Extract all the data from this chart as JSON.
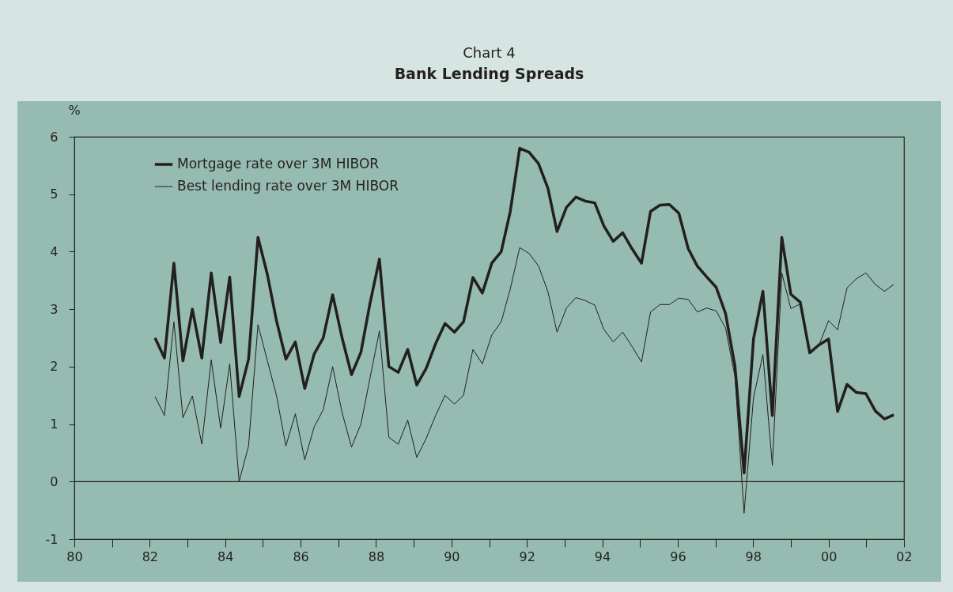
{
  "chart_data": {
    "type": "line",
    "title": "Chart 4",
    "subtitle": "Bank Lending Spreads",
    "ylabel": "%",
    "x": [
      1982.14,
      1982.39,
      1982.64,
      1982.88,
      1983.13,
      1983.38,
      1983.63,
      1983.88,
      1984.12,
      1984.37,
      1984.62,
      1984.87,
      1985.12,
      1985.36,
      1985.61,
      1985.86,
      1986.11,
      1986.36,
      1986.6,
      1986.85,
      1987.1,
      1987.35,
      1987.6,
      1987.84,
      1988.09,
      1988.34,
      1988.59,
      1988.84,
      1989.08,
      1989.33,
      1989.58,
      1989.83,
      1990.08,
      1990.32,
      1990.57,
      1990.82,
      1991.07,
      1991.32,
      1991.56,
      1991.81,
      1992.06,
      1992.31,
      1992.56,
      1992.8,
      1993.05,
      1993.3,
      1993.55,
      1993.8,
      1994.04,
      1994.29,
      1994.54,
      1994.79,
      1995.04,
      1995.28,
      1995.53,
      1995.78,
      1996.03,
      1996.28,
      1996.52,
      1996.77,
      1997.02,
      1997.27,
      1997.52,
      1997.76,
      1998.01,
      1998.26,
      1998.51,
      1998.76,
      1999.0,
      1999.25,
      1999.5,
      1999.75,
      2000.0,
      2000.24,
      2000.49,
      2000.74,
      2000.99,
      2001.24,
      2001.48,
      2001.73
    ],
    "series": [
      {
        "name": "Mortgage rate over 3M HIBOR",
        "color": "#231f20",
        "values": [
          2.5,
          2.15,
          3.8,
          2.1,
          3.0,
          2.15,
          3.63,
          2.42,
          3.56,
          1.48,
          2.13,
          4.25,
          3.6,
          2.8,
          2.13,
          2.43,
          1.62,
          2.22,
          2.5,
          3.25,
          2.5,
          1.86,
          2.25,
          3.1,
          3.87,
          2.0,
          1.9,
          2.3,
          1.68,
          1.97,
          2.4,
          2.75,
          2.6,
          2.78,
          3.55,
          3.28,
          3.8,
          4.0,
          4.7,
          5.8,
          5.73,
          5.53,
          5.1,
          4.35,
          4.77,
          4.95,
          4.88,
          4.85,
          4.45,
          4.18,
          4.33,
          4.05,
          3.8,
          4.7,
          4.81,
          4.82,
          4.67,
          4.05,
          3.75,
          3.56,
          3.38,
          2.92,
          2.0,
          0.15,
          2.48,
          3.31,
          1.15,
          4.25,
          3.26,
          3.12,
          2.24,
          2.38,
          2.48,
          1.22,
          1.69,
          1.55,
          1.53,
          1.23,
          1.09,
          1.16
        ]
      },
      {
        "name": "Best lending rate over 3M HIBOR",
        "color": "#231f20",
        "values": [
          1.48,
          1.15,
          2.78,
          1.11,
          1.49,
          0.65,
          2.12,
          0.93,
          2.05,
          0.0,
          0.62,
          2.73,
          2.1,
          1.5,
          0.62,
          1.18,
          0.38,
          0.95,
          1.25,
          2.0,
          1.2,
          0.6,
          1.0,
          1.8,
          2.62,
          0.77,
          0.65,
          1.07,
          0.42,
          0.75,
          1.15,
          1.5,
          1.35,
          1.5,
          2.3,
          2.05,
          2.55,
          2.78,
          3.35,
          4.07,
          3.97,
          3.75,
          3.3,
          2.6,
          3.02,
          3.2,
          3.15,
          3.07,
          2.65,
          2.43,
          2.6,
          2.35,
          2.08,
          2.95,
          3.08,
          3.08,
          3.19,
          3.17,
          2.95,
          3.02,
          2.97,
          2.67,
          1.82,
          -0.55,
          1.46,
          2.21,
          0.28,
          3.63,
          3.01,
          3.09,
          2.24,
          2.38,
          2.8,
          2.64,
          3.37,
          3.53,
          3.63,
          3.43,
          3.31,
          3.43
        ]
      }
    ],
    "xlim": [
      1980,
      2002
    ],
    "xticks": [
      {
        "value": 1980,
        "label": "80"
      },
      {
        "value": 1981,
        "label": null
      },
      {
        "value": 1982,
        "label": "82"
      },
      {
        "value": 1983,
        "label": null
      },
      {
        "value": 1984,
        "label": "84"
      },
      {
        "value": 1985,
        "label": null
      },
      {
        "value": 1986,
        "label": "86"
      },
      {
        "value": 1987,
        "label": null
      },
      {
        "value": 1988,
        "label": "88"
      },
      {
        "value": 1989,
        "label": null
      },
      {
        "value": 1990,
        "label": "90"
      },
      {
        "value": 1991,
        "label": null
      },
      {
        "value": 1992,
        "label": "92"
      },
      {
        "value": 1993,
        "label": null
      },
      {
        "value": 1994,
        "label": "94"
      },
      {
        "value": 1995,
        "label": null
      },
      {
        "value": 1996,
        "label": "96"
      },
      {
        "value": 1997,
        "label": null
      },
      {
        "value": 1998,
        "label": "98"
      },
      {
        "value": 1999,
        "label": null
      },
      {
        "value": 2000,
        "label": "00"
      },
      {
        "value": 2001,
        "label": null
      },
      {
        "value": 2002,
        "label": "02"
      }
    ],
    "ylim": [
      -1,
      6
    ],
    "yticks": [
      -1,
      0,
      1,
      2,
      3,
      4,
      5,
      6
    ],
    "ref_lines": [
      {
        "axis": "y",
        "value": 0,
        "label": null
      }
    ],
    "grid": false,
    "legend": "top left",
    "line_style": "solid"
  }
}
